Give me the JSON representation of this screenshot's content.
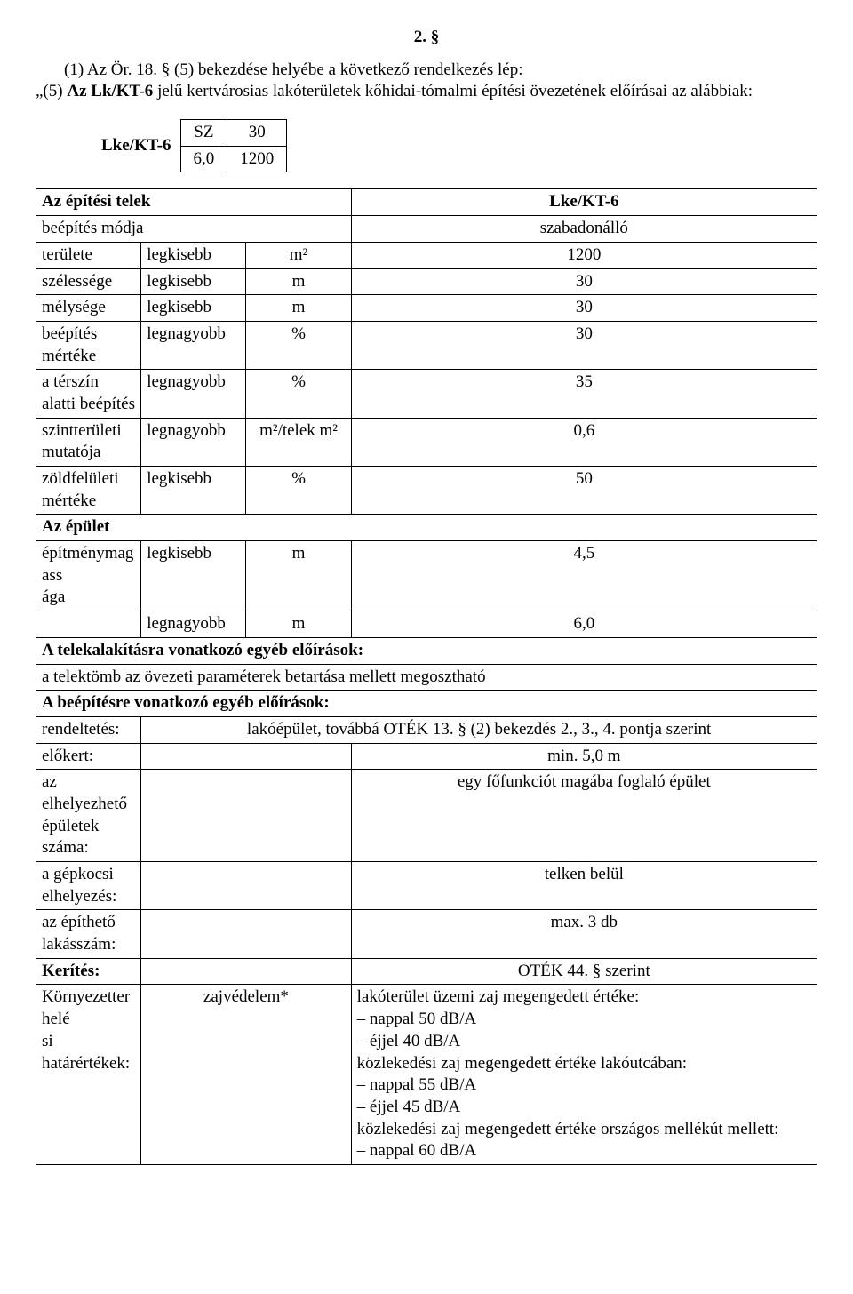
{
  "section_number": "2. §",
  "intro_line1": "(1) Az Ör. 18. § (5) bekezdése helyébe a következő rendelkezés lép:",
  "intro_line2_prefix": "„(5) ",
  "intro_line2_bold": "Az Lk/KT-6",
  "intro_line2_rest": " jelű kertvárosias lakóterületek kőhidai-tómalmi építési övezetének előírásai az alábbiak:",
  "zone_label": "Lke/KT-6",
  "zone_top_left": "SZ",
  "zone_top_right": "30",
  "zone_bot_left": "6,0",
  "zone_bot_right": "1200",
  "t": {
    "hdr_left": "Az építési telek",
    "hdr_right": "Lke/KT-6",
    "r1a": "beépítés módja",
    "r1d": "szabadonálló",
    "r2a": "területe",
    "r2b": "legkisebb",
    "r2c": "m²",
    "r2d": "1200",
    "r3a": "szélessége",
    "r3b": "legkisebb",
    "r3c": "m",
    "r3d": "30",
    "r4a": "mélysége",
    "r4b": "legkisebb",
    "r4c": "m",
    "r4d": "30",
    "r5a": "beépítés mértéke",
    "r5b": "legnagyobb",
    "r5c": "%",
    "r5d": "30",
    "r6a": "a térszín alatti beépítés",
    "r6b": "legnagyobb",
    "r6c": "%",
    "r6d": "35",
    "r7a": "szintterületi mutatója",
    "r7b": "legnagyobb",
    "r7c": "m²/telek m²",
    "r7d": "0,6",
    "r8a": "zöldfelületi mértéke",
    "r8b": "legkisebb",
    "r8c": "%",
    "r8d": "50",
    "r9a": "Az épület",
    "r10a": "építménymagasság",
    "r10a_wrap": "a",
    "r10b": "legkisebb",
    "r10c": "m",
    "r10d": "4,5",
    "r11b": "legnagyobb",
    "r11c": "m",
    "r11d": "6,0",
    "r12a": "A telekalakításra vonatkozó egyéb előírások:",
    "r13a": "a telektömb az övezeti paraméterek betartása mellett megosztható",
    "r14a": "A beépítésre vonatkozó egyéb előírások:",
    "r15a": "rendeltetés:",
    "r15d": "lakóépület, továbbá OTÉK 13. § (2) bekezdés 2., 3., 4. pontja szerint",
    "r16a": "előkert:",
    "r16d": "min. 5,0 m",
    "r17a": "az elhelyezhető épületek száma:",
    "r17d": "egy főfunkciót magába foglaló épület",
    "r18a": "a gépkocsi elhelyezés:",
    "r18d": "telken belül",
    "r19a": "az építhető lakásszám:",
    "r19d": "max. 3 db",
    "r20a": "Kerítés:",
    "r20d": "OTÉK 44. § szerint",
    "r21a": "Környezetterhelési határértékek:",
    "r21a_wrap": "si határértékek:",
    "r21b": "zajvédelem*",
    "r21d": "lakóterület üzemi zaj megengedett értéke:\n– nappal 50 dB/A\n– éjjel 40 dB/A\nközlekedési zaj megengedett értéke lakóutcában:\n– nappal 55 dB/A\n– éjjel 45 dB/A\nközlekedési zaj megengedett értéke országos mellékút mellett:\n– nappal 60 dB/A"
  }
}
